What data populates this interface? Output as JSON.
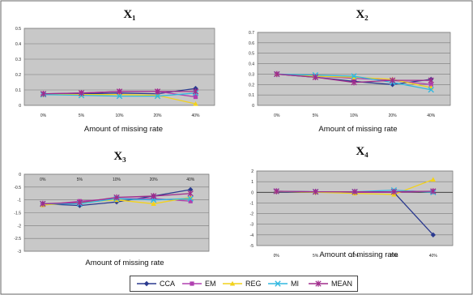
{
  "legend": [
    {
      "name": "CCA",
      "color": "#2b3a8f",
      "marker": "diamond"
    },
    {
      "name": "EM",
      "color": "#b040b0",
      "marker": "square"
    },
    {
      "name": "REG",
      "color": "#f2d21c",
      "marker": "triangle"
    },
    {
      "name": "MI",
      "color": "#30b8e0",
      "marker": "x"
    },
    {
      "name": "MEAN",
      "color": "#a02c8c",
      "marker": "star"
    }
  ],
  "chart_data": [
    {
      "type": "line",
      "title": "X1",
      "xlabel": "Amount of missing rate",
      "ylabel": "",
      "categories": [
        "0%",
        "5%",
        "10%",
        "20%",
        "40%"
      ],
      "ylim": [
        0,
        0.5
      ],
      "yticks": [
        "0",
        "0.1",
        "0.2",
        "0.3",
        "0.4",
        "0.5"
      ],
      "grid": true,
      "series": [
        {
          "name": "CCA",
          "values": [
            0.07,
            0.075,
            0.08,
            0.075,
            0.11
          ]
        },
        {
          "name": "EM",
          "values": [
            0.075,
            0.08,
            0.09,
            0.09,
            0.055
          ]
        },
        {
          "name": "REG",
          "values": [
            0.07,
            0.07,
            0.07,
            0.065,
            0.01
          ]
        },
        {
          "name": "MI",
          "values": [
            0.07,
            0.065,
            0.06,
            0.06,
            0.08
          ]
        },
        {
          "name": "MEAN",
          "values": [
            0.075,
            0.08,
            0.09,
            0.09,
            0.09
          ]
        }
      ]
    },
    {
      "type": "line",
      "title": "X2",
      "xlabel": "Amount of missing rate",
      "ylabel": "",
      "categories": [
        "0%",
        "5%",
        "10%",
        "20%",
        "40%"
      ],
      "ylim": [
        0,
        0.7
      ],
      "yticks": [
        "0",
        "0.1",
        "0.2",
        "0.3",
        "0.4",
        "0.5",
        "0.6",
        "0.7"
      ],
      "grid": true,
      "series": [
        {
          "name": "CCA",
          "values": [
            0.3,
            0.27,
            0.23,
            0.2,
            0.25
          ]
        },
        {
          "name": "EM",
          "values": [
            0.3,
            0.28,
            0.26,
            0.24,
            0.2
          ]
        },
        {
          "name": "REG",
          "values": [
            0.3,
            0.28,
            0.27,
            0.25,
            0.17
          ]
        },
        {
          "name": "MI",
          "values": [
            0.3,
            0.29,
            0.28,
            0.22,
            0.15
          ]
        },
        {
          "name": "MEAN",
          "values": [
            0.3,
            0.27,
            0.22,
            0.24,
            0.24
          ]
        }
      ]
    },
    {
      "type": "line",
      "title": "X3",
      "xlabel": "Amount of missing rate",
      "ylabel": "",
      "categories": [
        "0%",
        "5%",
        "10%",
        "20%",
        "40%"
      ],
      "ylim": [
        -3,
        0
      ],
      "yticks": [
        "0",
        "-0.5",
        "-1",
        "-1.5",
        "-2",
        "-2.5",
        "-3"
      ],
      "grid": true,
      "series": [
        {
          "name": "CCA",
          "values": [
            -1.15,
            -1.22,
            -1.08,
            -0.85,
            -0.6
          ]
        },
        {
          "name": "EM",
          "values": [
            -1.2,
            -1.05,
            -0.95,
            -0.95,
            -1.05
          ]
        },
        {
          "name": "REG",
          "values": [
            -1.2,
            -1.1,
            -1.0,
            -1.15,
            -0.9
          ]
        },
        {
          "name": "MI",
          "values": [
            -1.15,
            -1.15,
            -0.95,
            -1.0,
            -0.95
          ]
        },
        {
          "name": "MEAN",
          "values": [
            -1.15,
            -1.1,
            -0.9,
            -0.85,
            -0.75
          ]
        }
      ]
    },
    {
      "type": "line",
      "title": "X4",
      "xlabel": "Amount of missing rate",
      "ylabel": "",
      "categories": [
        "0%",
        "5%",
        "10%",
        "20%",
        "40%"
      ],
      "ylim": [
        -5,
        2
      ],
      "yticks": [
        "2",
        "1",
        "0",
        "-1",
        "-2",
        "-3",
        "-4",
        "-5"
      ],
      "grid": true,
      "series": [
        {
          "name": "CCA",
          "values": [
            0.05,
            0.0,
            0.0,
            0.0,
            -4.0
          ]
        },
        {
          "name": "EM",
          "values": [
            0.1,
            0.05,
            0.0,
            0.0,
            0.1
          ]
        },
        {
          "name": "REG",
          "values": [
            0.1,
            0.0,
            -0.1,
            -0.2,
            1.2
          ]
        },
        {
          "name": "MI",
          "values": [
            0.1,
            0.05,
            0.05,
            0.2,
            0.0
          ]
        },
        {
          "name": "MEAN",
          "values": [
            0.1,
            0.05,
            0.05,
            0.05,
            0.1
          ]
        }
      ]
    }
  ]
}
